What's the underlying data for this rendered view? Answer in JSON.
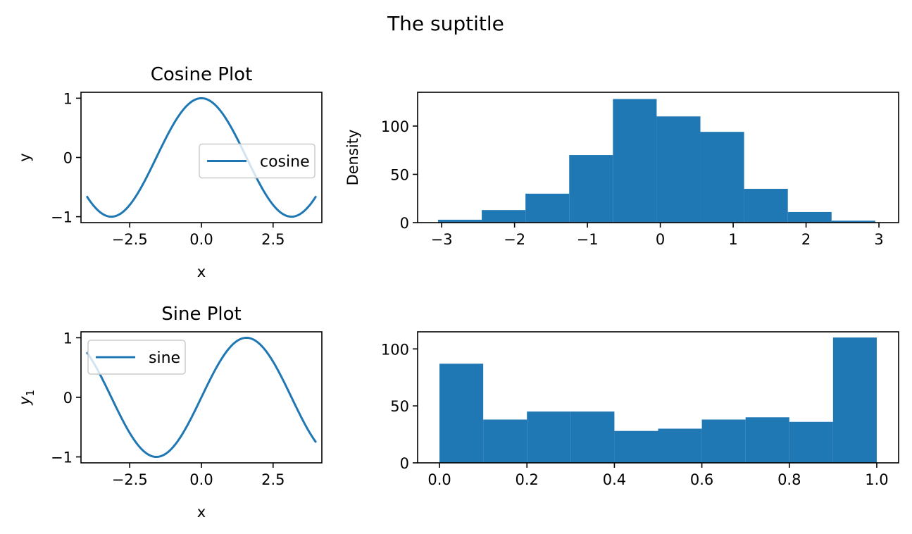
{
  "suptitle": "The suptitle",
  "colors": {
    "series": "#1f77b4",
    "legend_border": "#cccccc"
  },
  "chart_data": [
    {
      "id": "cosine",
      "type": "line",
      "title": "Cosine Plot",
      "xlabel": "x",
      "ylabel": "y",
      "xlim": [
        -4.2,
        4.2
      ],
      "ylim": [
        -1.1,
        1.1
      ],
      "xticks": [
        -2.5,
        0.0,
        2.5
      ],
      "xtick_labels": [
        "−2.5",
        "0.0",
        "2.5"
      ],
      "yticks": [
        -1,
        0,
        1
      ],
      "ytick_labels": [
        "−1",
        "0",
        "1"
      ],
      "legend": {
        "location": "center-right",
        "entries": [
          "cosine"
        ]
      },
      "series": [
        {
          "name": "cosine",
          "function": "cos",
          "x_range": [
            -4,
            4
          ],
          "x": [
            -4,
            -3.5,
            -3,
            -2.5,
            -2,
            -1.5,
            -1,
            -0.5,
            0,
            0.5,
            1,
            1.5,
            2,
            2.5,
            3,
            3.5,
            4
          ],
          "y": [
            -0.654,
            -0.936,
            -0.99,
            -0.801,
            -0.416,
            0.071,
            0.54,
            0.878,
            1.0,
            0.878,
            0.54,
            0.071,
            -0.416,
            -0.801,
            -0.99,
            -0.936,
            -0.654
          ]
        }
      ]
    },
    {
      "id": "normal-hist",
      "type": "bar",
      "title": "",
      "xlabel": "",
      "ylabel": "Density",
      "xlim": [
        -3.33,
        3.27
      ],
      "ylim": [
        0,
        135
      ],
      "xticks": [
        -3,
        -2,
        -1,
        0,
        1,
        2,
        3
      ],
      "xtick_labels": [
        "−3",
        "−2",
        "−1",
        "0",
        "1",
        "2",
        "3"
      ],
      "yticks": [
        0,
        50,
        100
      ],
      "ytick_labels": [
        "0",
        "50",
        "100"
      ],
      "bin_edges": [
        -3.05,
        -2.45,
        -1.85,
        -1.25,
        -0.65,
        -0.05,
        0.55,
        1.15,
        1.75,
        2.35,
        2.95
      ],
      "values": [
        3,
        13,
        30,
        70,
        128,
        110,
        94,
        35,
        11,
        2
      ]
    },
    {
      "id": "sine",
      "type": "line",
      "title": "Sine Plot",
      "xlabel": "x",
      "ylabel": "y₁",
      "ylabel_main": "y",
      "ylabel_sub": "1",
      "xlim": [
        -4.2,
        4.2
      ],
      "ylim": [
        -1.1,
        1.1
      ],
      "xticks": [
        -2.5,
        0.0,
        2.5
      ],
      "xtick_labels": [
        "−2.5",
        "0.0",
        "2.5"
      ],
      "yticks": [
        -1,
        0,
        1
      ],
      "ytick_labels": [
        "−1",
        "0",
        "1"
      ],
      "legend": {
        "location": "upper-left",
        "entries": [
          "sine"
        ]
      },
      "series": [
        {
          "name": "sine",
          "function": "sin",
          "x_range": [
            -4,
            4
          ],
          "x": [
            -4,
            -3.5,
            -3,
            -2.5,
            -2,
            -1.5,
            -1,
            -0.5,
            0,
            0.5,
            1,
            1.5,
            2,
            2.5,
            3,
            3.5,
            4
          ],
          "y": [
            0.757,
            0.351,
            -0.141,
            -0.598,
            -0.909,
            -0.997,
            -0.841,
            -0.479,
            0.0,
            0.479,
            0.841,
            0.997,
            0.909,
            0.598,
            0.141,
            -0.351,
            -0.757
          ]
        }
      ]
    },
    {
      "id": "uniform-hist",
      "type": "bar",
      "title": "",
      "xlabel": "",
      "ylabel": "",
      "xlim": [
        -0.05,
        1.05
      ],
      "ylim": [
        0,
        115
      ],
      "xticks": [
        0.0,
        0.2,
        0.4,
        0.6,
        0.8,
        1.0
      ],
      "xtick_labels": [
        "0.0",
        "0.2",
        "0.4",
        "0.6",
        "0.8",
        "1.0"
      ],
      "yticks": [
        0,
        50,
        100
      ],
      "ytick_labels": [
        "0",
        "50",
        "100"
      ],
      "bin_edges": [
        0.0,
        0.1,
        0.2,
        0.3,
        0.4,
        0.5,
        0.6,
        0.7,
        0.8,
        0.9,
        1.0
      ],
      "values": [
        87,
        38,
        45,
        45,
        28,
        30,
        38,
        40,
        36,
        110
      ]
    }
  ]
}
